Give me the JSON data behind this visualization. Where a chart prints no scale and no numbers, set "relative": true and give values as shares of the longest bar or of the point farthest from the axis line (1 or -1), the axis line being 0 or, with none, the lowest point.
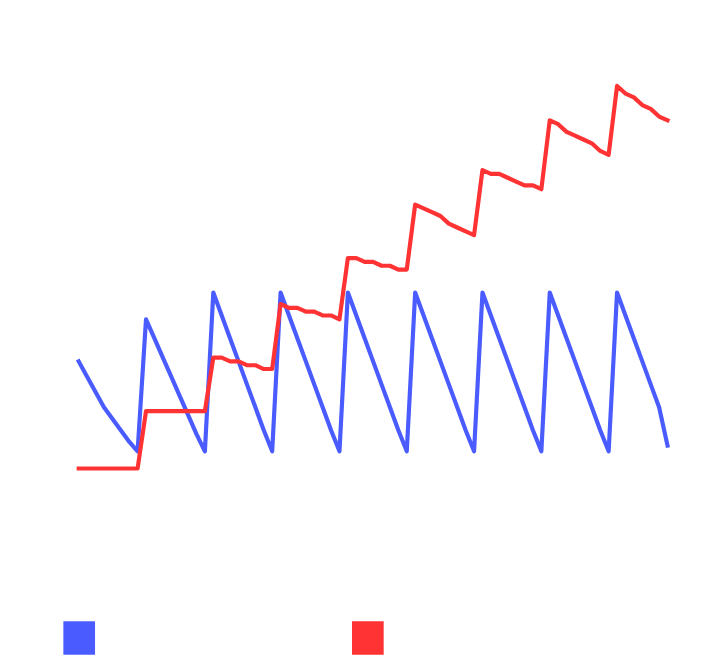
{
  "chart_data": {
    "type": "line",
    "relative": true,
    "line_style": "solid",
    "marker": "none",
    "categories": [
      null,
      null,
      null,
      null,
      null,
      null,
      null,
      null,
      null,
      null,
      null,
      null,
      null,
      null,
      null,
      null,
      null,
      null,
      null,
      null,
      null,
      null,
      null,
      null,
      null,
      null,
      null,
      null,
      null,
      null,
      null,
      null,
      null,
      null,
      null,
      null,
      null,
      null,
      null,
      null,
      null,
      null,
      null,
      null,
      null,
      null,
      null,
      null,
      null,
      null,
      null,
      null,
      null,
      null,
      null,
      null,
      null,
      null,
      null,
      null,
      null,
      null,
      null,
      null,
      null,
      null,
      null,
      null,
      null,
      null,
      null
    ],
    "series": [
      {
        "color": "#4a5cff",
        "values": [
          0.28,
          0.24,
          0.2,
          0.16,
          0.13,
          0.1,
          0.07,
          0.045,
          0.39,
          0.34,
          0.29,
          0.24,
          0.19,
          0.14,
          0.09,
          0.045,
          0.46,
          0.4,
          0.34,
          0.28,
          0.22,
          0.16,
          0.1,
          0.045,
          0.46,
          0.4,
          0.34,
          0.28,
          0.22,
          0.16,
          0.1,
          0.045,
          0.46,
          0.4,
          0.34,
          0.28,
          0.22,
          0.16,
          0.1,
          0.045,
          0.46,
          0.4,
          0.34,
          0.28,
          0.22,
          0.16,
          0.1,
          0.045,
          0.46,
          0.4,
          0.34,
          0.28,
          0.22,
          0.16,
          0.1,
          0.045,
          0.46,
          0.4,
          0.34,
          0.28,
          0.22,
          0.16,
          0.1,
          0.045,
          0.46,
          0.4,
          0.34,
          0.28,
          0.22,
          0.16,
          0.06
        ]
      },
      {
        "color": "#ff3333",
        "values": [
          0,
          0,
          0,
          0,
          0,
          0,
          0,
          0,
          0.15,
          0.15,
          0.15,
          0.15,
          0.15,
          0.15,
          0.15,
          0.15,
          0.29,
          0.29,
          0.28,
          0.28,
          0.27,
          0.27,
          0.26,
          0.26,
          0.43,
          0.42,
          0.42,
          0.41,
          0.41,
          0.4,
          0.4,
          0.39,
          0.55,
          0.55,
          0.54,
          0.54,
          0.53,
          0.53,
          0.52,
          0.52,
          0.69,
          0.68,
          0.67,
          0.66,
          0.64,
          0.63,
          0.62,
          0.61,
          0.78,
          0.77,
          0.77,
          0.76,
          0.75,
          0.74,
          0.74,
          0.73,
          0.91,
          0.9,
          0.88,
          0.87,
          0.86,
          0.85,
          0.83,
          0.82,
          1.0,
          0.98,
          0.97,
          0.95,
          0.94,
          0.92,
          0.91
        ]
      }
    ]
  }
}
